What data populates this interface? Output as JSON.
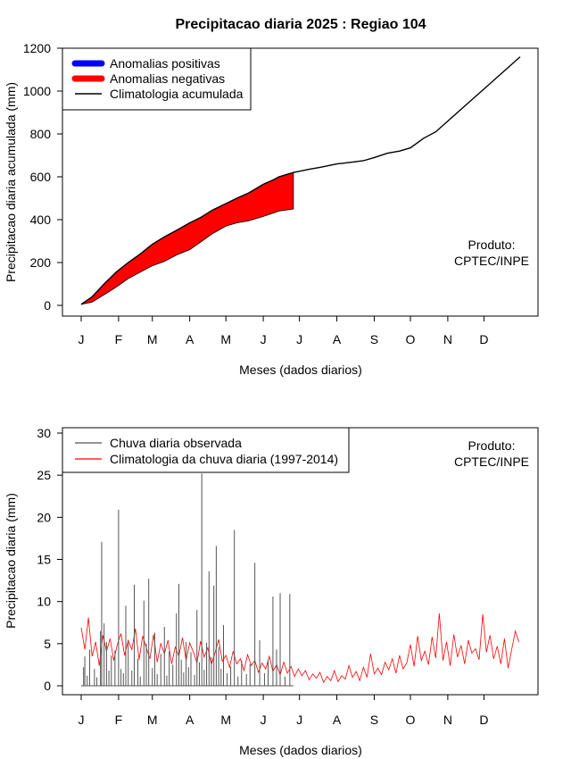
{
  "page_title": "Precipitacao diaria 2025 : Regiao 104",
  "colors": {
    "positive": "#0000ff",
    "negative": "#ff0000",
    "climatology_cumulative": "#000000",
    "observed_daily": "#555555",
    "climatology_daily": "#ff0000"
  },
  "chart_data": [
    {
      "type": "area",
      "title": "Precipitacao diaria 2025 : Regiao 104",
      "xlabel": "Meses (dados diarios)",
      "ylabel": "Precipitacao diaria acumulada (mm)",
      "xlim": [
        1,
        365
      ],
      "ylim": [
        0,
        1200
      ],
      "x_tick_labels": [
        "J",
        "F",
        "M",
        "A",
        "M",
        "J",
        "J",
        "A",
        "S",
        "O",
        "N",
        "D"
      ],
      "x_tick_days": [
        1,
        32,
        60,
        91,
        121,
        152,
        182,
        213,
        244,
        274,
        305,
        335
      ],
      "y_ticks": [
        0,
        200,
        400,
        600,
        800,
        1000,
        1200
      ],
      "legend_position": "top-left",
      "annotation": [
        "Produto:",
        "CPTEC/INPE"
      ],
      "series": [
        {
          "name": "Anomalias positivas",
          "style": "fill",
          "values": []
        },
        {
          "name": "Anomalias negativas",
          "style": "fill",
          "x": [
            1,
            10,
            20,
            30,
            40,
            50,
            60,
            70,
            80,
            91,
            100,
            110,
            121,
            130,
            140,
            152,
            160,
            165,
            177
          ],
          "upper": [
            5,
            40,
            100,
            155,
            200,
            240,
            285,
            320,
            350,
            385,
            410,
            445,
            475,
            500,
            525,
            565,
            585,
            600,
            620
          ],
          "lower": [
            5,
            15,
            50,
            85,
            125,
            155,
            185,
            205,
            235,
            260,
            295,
            335,
            370,
            385,
            395,
            415,
            430,
            440,
            450
          ]
        },
        {
          "name": "Climatologia acumulada",
          "style": "line",
          "x": [
            1,
            10,
            20,
            30,
            40,
            50,
            60,
            70,
            80,
            91,
            100,
            110,
            121,
            130,
            140,
            152,
            160,
            165,
            177,
            190,
            200,
            213,
            225,
            235,
            244,
            255,
            265,
            274,
            285,
            295,
            305,
            315,
            325,
            335,
            345,
            355,
            365
          ],
          "values": [
            5,
            40,
            100,
            155,
            200,
            240,
            285,
            320,
            350,
            385,
            410,
            445,
            475,
            500,
            525,
            565,
            585,
            600,
            620,
            635,
            645,
            660,
            668,
            675,
            690,
            710,
            720,
            735,
            780,
            810,
            860,
            910,
            960,
            1010,
            1060,
            1110,
            1160
          ]
        }
      ]
    },
    {
      "type": "line",
      "xlabel": "Meses (dados diarios)",
      "ylabel": "Precipitacao diaria (mm)",
      "xlim": [
        1,
        365
      ],
      "ylim": [
        0,
        30
      ],
      "x_tick_labels": [
        "J",
        "F",
        "M",
        "A",
        "M",
        "J",
        "J",
        "A",
        "S",
        "O",
        "N",
        "D"
      ],
      "x_tick_days": [
        1,
        32,
        60,
        91,
        121,
        152,
        182,
        213,
        244,
        274,
        305,
        335
      ],
      "y_ticks": [
        0,
        5,
        10,
        15,
        20,
        25,
        30
      ],
      "legend_position": "top-left",
      "annotation": [
        "Produto:",
        "CPTEC/INPE"
      ],
      "series": [
        {
          "name": "Chuva diaria observada",
          "style": "spikes",
          "x": [
            3,
            4,
            6,
            8,
            12,
            14,
            17,
            18,
            20,
            22,
            24,
            26,
            29,
            32,
            34,
            36,
            38,
            40,
            43,
            45,
            48,
            50,
            53,
            55,
            57,
            60,
            62,
            64,
            67,
            70,
            72,
            74,
            77,
            80,
            82,
            84,
            86,
            88,
            90,
            92,
            95,
            97,
            99,
            101,
            103,
            105,
            107,
            109,
            111,
            113,
            115,
            117,
            119,
            122,
            125,
            128,
            131,
            134,
            138,
            141,
            145,
            149,
            153,
            156,
            160,
            163,
            166,
            170,
            174
          ],
          "values": [
            2.2,
            3.5,
            1.2,
            4.3,
            2.0,
            1.0,
            6.5,
            17.1,
            7.4,
            5.2,
            1.8,
            3.6,
            4.2,
            20.9,
            2.0,
            1.5,
            9.5,
            5.1,
            1.8,
            12.0,
            3.2,
            1.1,
            10.1,
            5.0,
            12.7,
            2.1,
            6.3,
            1.4,
            3.8,
            7.0,
            1.2,
            4.1,
            2.5,
            8.6,
            12.1,
            3.1,
            1.6,
            5.2,
            2.2,
            4.0,
            1.3,
            9.0,
            2.8,
            25.2,
            1.9,
            5.1,
            13.6,
            3.4,
            11.9,
            16.6,
            4.6,
            2.0,
            7.2,
            1.5,
            2.3,
            18.5,
            1.1,
            3.0,
            1.4,
            2.6,
            14.6,
            5.4,
            1.5,
            3.1,
            10.6,
            4.3,
            11.0,
            1.1,
            10.9
          ]
        },
        {
          "name": "Climatologia da chuva diaria (1997-2014)",
          "style": "line",
          "x": [
            1,
            4,
            7,
            10,
            13,
            16,
            19,
            22,
            25,
            28,
            31,
            34,
            37,
            40,
            43,
            46,
            49,
            52,
            55,
            58,
            61,
            64,
            67,
            70,
            73,
            76,
            79,
            82,
            85,
            88,
            91,
            94,
            97,
            100,
            103,
            106,
            109,
            112,
            115,
            118,
            121,
            124,
            127,
            130,
            133,
            136,
            139,
            142,
            145,
            148,
            151,
            154,
            157,
            160,
            163,
            166,
            169,
            172,
            175,
            178,
            181,
            184,
            187,
            190,
            193,
            196,
            199,
            202,
            205,
            208,
            211,
            214,
            217,
            220,
            223,
            226,
            229,
            232,
            235,
            238,
            241,
            244,
            247,
            250,
            253,
            256,
            259,
            262,
            265,
            268,
            271,
            274,
            277,
            280,
            283,
            286,
            289,
            292,
            295,
            298,
            301,
            304,
            307,
            310,
            313,
            316,
            319,
            322,
            325,
            328,
            331,
            334,
            337,
            340,
            343,
            346,
            349,
            352,
            355,
            358,
            361,
            364
          ],
          "values": [
            6.9,
            4.3,
            8.1,
            3.5,
            5.2,
            2.4,
            6.0,
            4.1,
            5.6,
            3.0,
            4.9,
            6.2,
            3.6,
            5.4,
            4.3,
            6.8,
            3.1,
            5.9,
            4.5,
            3.2,
            6.1,
            2.8,
            5.0,
            3.8,
            5.4,
            2.6,
            4.6,
            3.5,
            5.7,
            3.0,
            5.1,
            4.0,
            2.7,
            5.3,
            3.4,
            4.5,
            2.5,
            3.9,
            5.5,
            2.9,
            3.6,
            2.2,
            4.1,
            2.6,
            3.2,
            1.8,
            3.7,
            2.4,
            3.0,
            1.6,
            2.7,
            2.0,
            3.5,
            1.7,
            2.5,
            1.3,
            2.8,
            1.5,
            2.3,
            1.1,
            2.0,
            1.2,
            1.8,
            0.7,
            1.4,
            0.9,
            1.6,
            0.4,
            1.1,
            0.6,
            1.8,
            0.5,
            1.2,
            0.8,
            2.4,
            1.0,
            1.7,
            0.6,
            2.2,
            1.0,
            3.8,
            1.4,
            2.1,
            1.3,
            2.8,
            1.9,
            3.2,
            1.5,
            3.6,
            2.0,
            2.7,
            4.9,
            2.3,
            5.9,
            3.0,
            4.1,
            2.5,
            5.8,
            3.3,
            8.6,
            3.0,
            5.2,
            2.4,
            6.1,
            3.4,
            4.8,
            2.6,
            5.4,
            3.9,
            4.4,
            3.1,
            8.5,
            4.0,
            6.0,
            3.2,
            4.7,
            2.6,
            5.6,
            2.1,
            4.3,
            6.5,
            5.2
          ]
        }
      ]
    }
  ]
}
